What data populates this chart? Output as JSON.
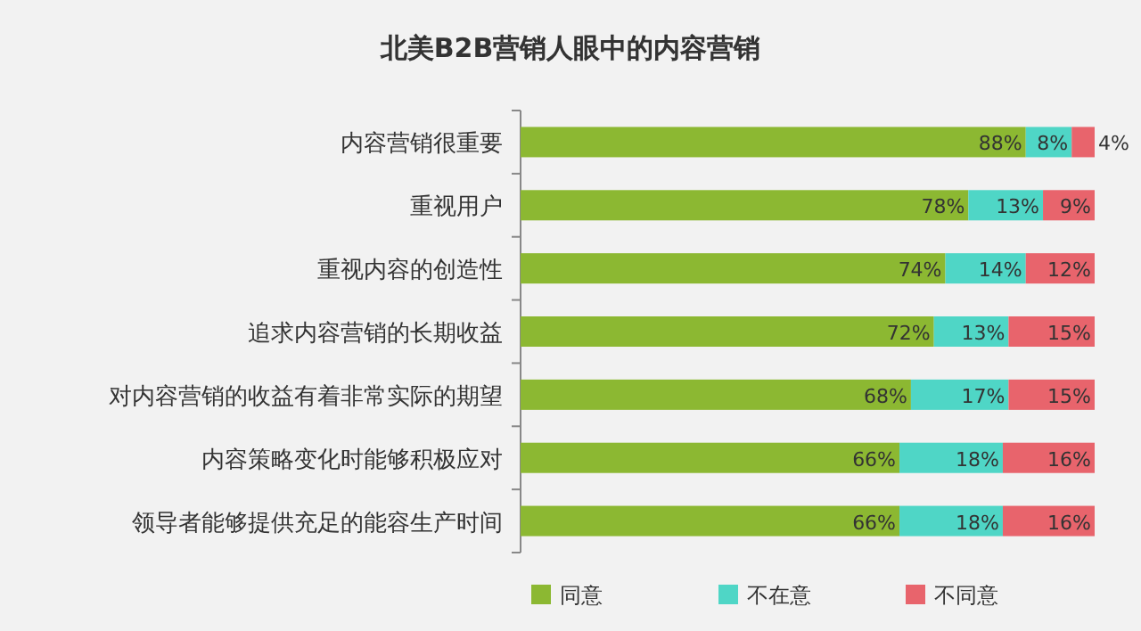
{
  "chart_data": {
    "type": "bar",
    "orientation": "horizontal",
    "stacked": true,
    "title": "北美B2B营销人眼中的内容营销",
    "categories": [
      "内容营销很重要",
      "重视用户",
      "重视内容的创造性",
      "追求内容营销的长期收益",
      "对内容营销的收益有着非常实际的期望",
      "内容策略变化时能够积极应对",
      "领导者能够提供充足的能容生产时间"
    ],
    "series": [
      {
        "name": "同意",
        "color": "#8cb832",
        "values": [
          88,
          78,
          74,
          72,
          68,
          66,
          66
        ],
        "value_labels": [
          "88%",
          "78%",
          "74%",
          "72%",
          "68%",
          "66%",
          "66%"
        ]
      },
      {
        "name": "不在意",
        "color": "#4fd6c6",
        "values": [
          8,
          13,
          14,
          13,
          17,
          18,
          18
        ],
        "value_labels": [
          "8%",
          "13%",
          "14%",
          "13%",
          "17%",
          "18%",
          "18%"
        ]
      },
      {
        "name": "不同意",
        "color": "#e8646c",
        "values": [
          4,
          9,
          12,
          15,
          15,
          16,
          16
        ],
        "value_labels": [
          "4%",
          "9%",
          "12%",
          "15%",
          "15%",
          "16%",
          "16%"
        ]
      }
    ],
    "legend": "bottom"
  }
}
